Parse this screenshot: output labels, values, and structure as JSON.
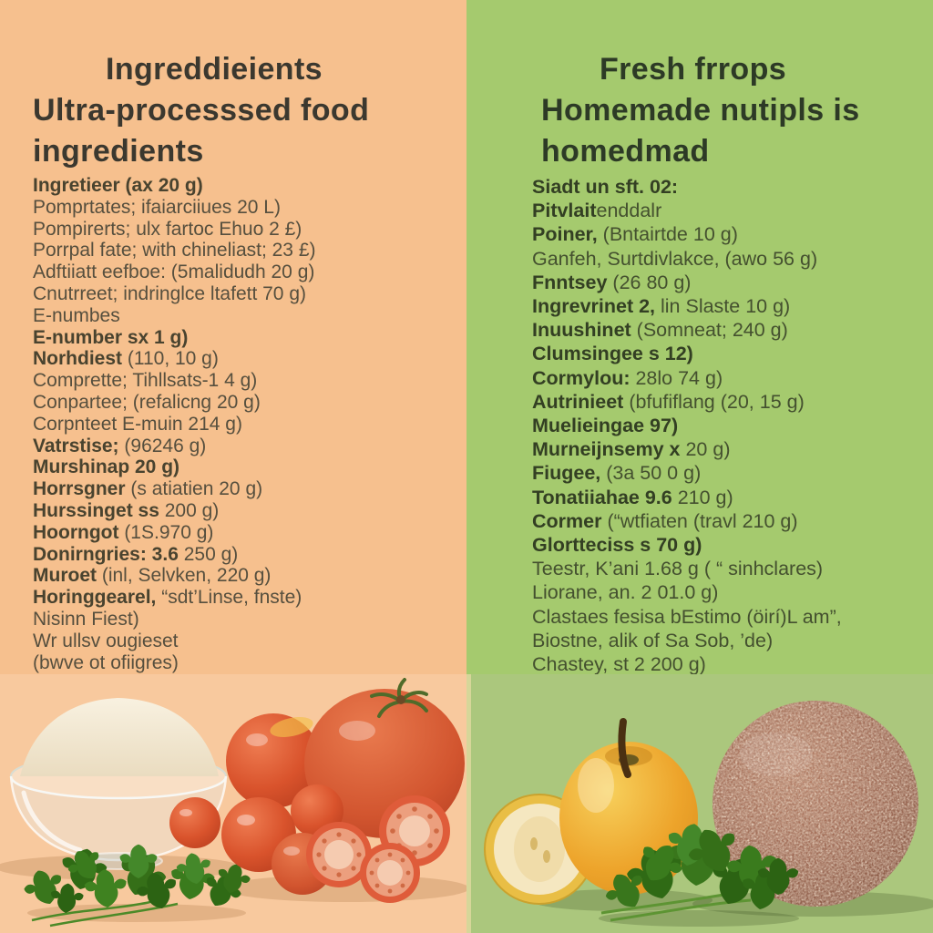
{
  "palette": {
    "left_bg": "#f6c08e",
    "right_bg": "#a5ca6e",
    "left_title_color": "#3b382f",
    "right_title_color": "#2d3a26",
    "left_text_color": "#564f3e",
    "right_text_color": "#44502f"
  },
  "left": {
    "title_lines": [
      "Ingreddieients",
      "Ultra-processsed food",
      "ingredients"
    ],
    "list": [
      {
        "b": "Ingretieer (ax 20 g)",
        "r": ""
      },
      {
        "b": "",
        "r": "Pomprtates; ifaiarciiues 20 L)"
      },
      {
        "b": "",
        "r": "Pompirerts; ulx fartoc Ehuo 2 £)"
      },
      {
        "b": "",
        "r": "Porrpal fate; with chineliast; 23 £)"
      },
      {
        "b": "",
        "r": "Adftiiatt eefboe: (5malidudh 20 g)"
      },
      {
        "b": "",
        "r": "Cnutrreet; indringlce ltafett 70 g)"
      },
      {
        "b": "",
        "r": "E-numbes"
      },
      {
        "b": "E-number sx 1 g)",
        "r": ""
      },
      {
        "b": "Norhdiest",
        "r": " (110, 10 g)"
      },
      {
        "b": "",
        "r": "Comprette; Tihllsats-1 4 g)"
      },
      {
        "b": "",
        "r": "Conpartee; (refalicng 20 g)"
      },
      {
        "b": "",
        "r": "Corpnteet E-muin 214 g)"
      },
      {
        "b": "Vatrstise;",
        "r": " (96246 g)"
      },
      {
        "b": "Murshinap 20 g)",
        "r": ""
      },
      {
        "b": "Horrsgner",
        "r": " (s atiatien 20 g)"
      },
      {
        "b": "Hurssinget ss",
        "r": " 200 g)"
      },
      {
        "b": "Hoorngot",
        "r": " (1S.970 g)"
      },
      {
        "b": "Donirngries: 3.6",
        "r": " 250 g)"
      },
      {
        "b": "Muroet",
        "r": " (inl, Selvken, 220 g)"
      },
      {
        "b": "Horinggearel,",
        "r": " “sdt’Linse, fnste)"
      },
      {
        "b": "",
        "r": "Nisinn Fiest)"
      },
      {
        "b": "",
        "r": "Wr ullsv ougieset"
      },
      {
        "b": "",
        "r": "(bwve ot ofiigres)"
      }
    ],
    "photo_alt": "glass bowl of white flour, parsley sprigs and red tomatoes (one large, cherry tomatoes, cut halves)"
  },
  "right": {
    "title_lines": [
      "Fresh frrops",
      "Homemade nutipls is",
      "homedmad"
    ],
    "list": [
      {
        "b": "Siadt un sft. 02:",
        "r": ""
      },
      {
        "b": "Pitvlait",
        "r": "enddalr"
      },
      {
        "b": "Poiner,",
        "r": " (Bntairtde 10 g)"
      },
      {
        "b": "",
        "r": "Ganfeh, Surtdivlakce, (awo 56 g)"
      },
      {
        "b": "Fnntsey",
        "r": " (26 80 g)"
      },
      {
        "b": "Ingrevrinet 2,",
        "r": " lin Slaste 10 g)"
      },
      {
        "b": "Inuushinet",
        "r": " (Somneat; 240 g)"
      },
      {
        "b": "Clumsingee s 12)",
        "r": ""
      },
      {
        "b": "Cormylou:",
        "r": " 28lo 74 g)"
      },
      {
        "b": "Autrinieet",
        "r": " (bfufiflang (20, 15 g)"
      },
      {
        "b": "Muelieingae 97)",
        "r": ""
      },
      {
        "b": "Murneijnsemy x",
        "r": " 20 g)"
      },
      {
        "b": "Fiugee,",
        "r": " (3a 50 0 g)"
      },
      {
        "b": "Tonatiiahae 9.6",
        "r": " 210 g)"
      },
      {
        "b": "Cormer",
        "r": " (“wtfiaten (travl 210 g)"
      },
      {
        "b": "Glortteciss s 70 g)",
        "r": ""
      },
      {
        "b": "",
        "r": "Teestr, K’ani 1.68 g ( “ sinhclares)"
      },
      {
        "b": "",
        "r": "Liorane, an. 2 01.0 g)"
      },
      {
        "b": "",
        "r": "Clastaes fesisa bEstimo (öirí)L am”,"
      },
      {
        "b": "",
        "r": "Biostne, alik of Sa Sob, ’de)"
      },
      {
        "b": "",
        "r": "Chastey, st 2 200 g)"
      }
    ],
    "photo_alt": "yellow apple with stem, halved yellow fruit, parsley bunch and a large speckled wholegrain ball"
  }
}
